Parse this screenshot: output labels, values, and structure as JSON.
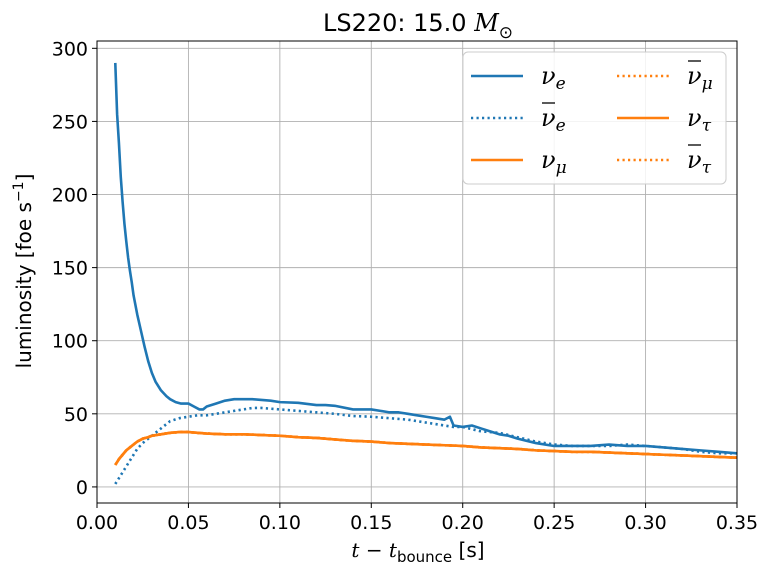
{
  "chart_data": {
    "type": "line",
    "title": "LS220: 15.0 M⊙",
    "title_prefix": "LS220: 15.0 ",
    "title_symbol": "M",
    "title_subscript": "⊙",
    "xlabel": "t − t",
    "xlabel_subscript": "bounce",
    "xlabel_suffix": " [s]",
    "ylabel": "luminosity [foe s",
    "ylabel_superscript": "−1",
    "ylabel_suffix": "]",
    "xlim": [
      0.0,
      0.35
    ],
    "ylim": [
      -11,
      305
    ],
    "xticks": [
      0.0,
      0.05,
      0.1,
      0.15,
      0.2,
      0.25,
      0.3,
      0.35
    ],
    "xtick_labels": [
      "0.00",
      "0.05",
      "0.10",
      "0.15",
      "0.20",
      "0.25",
      "0.30",
      "0.35"
    ],
    "yticks": [
      0,
      50,
      100,
      150,
      200,
      250,
      300
    ],
    "ytick_labels": [
      "0",
      "50",
      "100",
      "150",
      "200",
      "250",
      "300"
    ],
    "grid": true,
    "legend_position": "top-right",
    "legend_columns": 2,
    "colors": {
      "blue": "#1f77b4",
      "orange": "#ff7f0e"
    },
    "series": [
      {
        "name": "ν_e",
        "symbol": "ν",
        "sub": "e",
        "bar": false,
        "color": "#1f77b4",
        "style": "solid",
        "x": [
          0.01,
          0.011,
          0.012,
          0.013,
          0.014,
          0.015,
          0.016,
          0.017,
          0.018,
          0.019,
          0.02,
          0.022,
          0.024,
          0.026,
          0.028,
          0.03,
          0.032,
          0.035,
          0.038,
          0.04,
          0.043,
          0.046,
          0.05,
          0.053,
          0.056,
          0.058,
          0.06,
          0.065,
          0.07,
          0.075,
          0.08,
          0.085,
          0.09,
          0.095,
          0.1,
          0.11,
          0.12,
          0.125,
          0.13,
          0.14,
          0.15,
          0.155,
          0.16,
          0.165,
          0.17,
          0.175,
          0.18,
          0.185,
          0.19,
          0.193,
          0.195,
          0.2,
          0.205,
          0.21,
          0.215,
          0.22,
          0.225,
          0.23,
          0.24,
          0.25,
          0.26,
          0.27,
          0.28,
          0.29,
          0.3,
          0.31,
          0.32,
          0.33,
          0.34,
          0.35
        ],
        "y": [
          290,
          255,
          235,
          212,
          195,
          180,
          168,
          157,
          148,
          140,
          131,
          118,
          107,
          96,
          86,
          78,
          72,
          66,
          62,
          60,
          58,
          57,
          57,
          55,
          53,
          53,
          55,
          57,
          59,
          60,
          60,
          60,
          59.5,
          59,
          58,
          57.5,
          56,
          56,
          55.5,
          53,
          53,
          52,
          51,
          51,
          50,
          49,
          48,
          47,
          46,
          48,
          42,
          41,
          42,
          40,
          38,
          36,
          35,
          33,
          30,
          28,
          28,
          28,
          29,
          28,
          28,
          27,
          26,
          25,
          24,
          23
        ]
      },
      {
        "name": "ν̄_e",
        "symbol": "ν",
        "sub": "e",
        "bar": true,
        "color": "#1f77b4",
        "style": "dotted",
        "x": [
          0.01,
          0.012,
          0.014,
          0.016,
          0.018,
          0.02,
          0.022,
          0.025,
          0.028,
          0.03,
          0.033,
          0.036,
          0.04,
          0.045,
          0.05,
          0.055,
          0.06,
          0.065,
          0.07,
          0.075,
          0.08,
          0.085,
          0.09,
          0.095,
          0.1,
          0.11,
          0.12,
          0.13,
          0.14,
          0.15,
          0.16,
          0.17,
          0.18,
          0.19,
          0.195,
          0.2,
          0.21,
          0.22,
          0.23,
          0.24,
          0.25,
          0.26,
          0.27,
          0.28,
          0.29,
          0.3,
          0.31,
          0.32,
          0.33,
          0.34,
          0.35
        ],
        "y": [
          2,
          6,
          10,
          14,
          18,
          22,
          26,
          30,
          33,
          35,
          38,
          41,
          45,
          47,
          48,
          49,
          49,
          50,
          51,
          52,
          53,
          54,
          54,
          53.5,
          53,
          52,
          51,
          50,
          48.5,
          48,
          47,
          46,
          44,
          42,
          41,
          41,
          38,
          37,
          34,
          31,
          29,
          28,
          28,
          28,
          29,
          28,
          27,
          26,
          24,
          23,
          23
        ]
      },
      {
        "name": "ν_μ",
        "symbol": "ν",
        "sub": "μ",
        "bar": false,
        "color": "#ff7f0e",
        "style": "solid",
        "x": [
          0.01,
          0.012,
          0.014,
          0.016,
          0.018,
          0.02,
          0.022,
          0.025,
          0.028,
          0.03,
          0.035,
          0.04,
          0.045,
          0.05,
          0.055,
          0.06,
          0.07,
          0.08,
          0.09,
          0.1,
          0.11,
          0.12,
          0.13,
          0.14,
          0.15,
          0.16,
          0.17,
          0.18,
          0.19,
          0.2,
          0.21,
          0.22,
          0.23,
          0.24,
          0.25,
          0.26,
          0.27,
          0.28,
          0.29,
          0.3,
          0.31,
          0.32,
          0.33,
          0.34,
          0.35
        ],
        "y": [
          15,
          19,
          22,
          25,
          27,
          29,
          31,
          33,
          34,
          35,
          36,
          37,
          37.5,
          37.5,
          37,
          36.5,
          36,
          36,
          35.5,
          35,
          34,
          33.5,
          32.5,
          31.5,
          31,
          30,
          29.5,
          29,
          28.5,
          28,
          27,
          26.5,
          26,
          25,
          24.5,
          24,
          24,
          23.5,
          23,
          22.5,
          22,
          21.5,
          21,
          20.5,
          20
        ]
      },
      {
        "name": "ν̄_μ",
        "symbol": "ν",
        "sub": "μ",
        "bar": true,
        "color": "#ff7f0e",
        "style": "dotted",
        "x": [
          0.01,
          0.012,
          0.014,
          0.016,
          0.018,
          0.02,
          0.022,
          0.025,
          0.028,
          0.03,
          0.035,
          0.04,
          0.045,
          0.05,
          0.055,
          0.06,
          0.07,
          0.08,
          0.09,
          0.1,
          0.11,
          0.12,
          0.13,
          0.14,
          0.15,
          0.16,
          0.17,
          0.18,
          0.19,
          0.2,
          0.21,
          0.22,
          0.23,
          0.24,
          0.25,
          0.26,
          0.27,
          0.28,
          0.29,
          0.3,
          0.31,
          0.32,
          0.33,
          0.34,
          0.35
        ],
        "y": [
          15,
          19,
          22,
          25,
          27,
          29,
          31,
          33,
          34,
          35,
          36,
          37,
          37.5,
          37.5,
          37,
          36.5,
          36,
          36,
          35.5,
          35,
          34,
          33.5,
          32.5,
          31.5,
          31,
          30,
          29.5,
          29,
          28.5,
          28,
          27,
          26.5,
          26,
          25,
          24.5,
          24,
          24,
          23.5,
          23,
          22.5,
          22,
          21.5,
          21,
          20.5,
          20
        ]
      },
      {
        "name": "ν_τ",
        "symbol": "ν",
        "sub": "τ",
        "bar": false,
        "color": "#ff7f0e",
        "style": "solid",
        "x": [
          0.01,
          0.012,
          0.014,
          0.016,
          0.018,
          0.02,
          0.022,
          0.025,
          0.028,
          0.03,
          0.035,
          0.04,
          0.045,
          0.05,
          0.055,
          0.06,
          0.07,
          0.08,
          0.09,
          0.1,
          0.11,
          0.12,
          0.13,
          0.14,
          0.15,
          0.16,
          0.17,
          0.18,
          0.19,
          0.2,
          0.21,
          0.22,
          0.23,
          0.24,
          0.25,
          0.26,
          0.27,
          0.28,
          0.29,
          0.3,
          0.31,
          0.32,
          0.33,
          0.34,
          0.35
        ],
        "y": [
          15,
          19,
          22,
          25,
          27,
          29,
          31,
          33,
          34,
          35,
          36,
          37,
          37.5,
          37.5,
          37,
          36.5,
          36,
          36,
          35.5,
          35,
          34,
          33.5,
          32.5,
          31.5,
          31,
          30,
          29.5,
          29,
          28.5,
          28,
          27,
          26.5,
          26,
          25,
          24.5,
          24,
          24,
          23.5,
          23,
          22.5,
          22,
          21.5,
          21,
          20.5,
          20
        ]
      },
      {
        "name": "ν̄_τ",
        "symbol": "ν",
        "sub": "τ",
        "bar": true,
        "color": "#ff7f0e",
        "style": "dotted",
        "x": [
          0.01,
          0.012,
          0.014,
          0.016,
          0.018,
          0.02,
          0.022,
          0.025,
          0.028,
          0.03,
          0.035,
          0.04,
          0.045,
          0.05,
          0.055,
          0.06,
          0.07,
          0.08,
          0.09,
          0.1,
          0.11,
          0.12,
          0.13,
          0.14,
          0.15,
          0.16,
          0.17,
          0.18,
          0.19,
          0.2,
          0.21,
          0.22,
          0.23,
          0.24,
          0.25,
          0.26,
          0.27,
          0.28,
          0.29,
          0.3,
          0.31,
          0.32,
          0.33,
          0.34,
          0.35
        ],
        "y": [
          15,
          19,
          22,
          25,
          27,
          29,
          31,
          33,
          34,
          35,
          36,
          37,
          37.5,
          37.5,
          37,
          36.5,
          36,
          36,
          35.5,
          35,
          34,
          33.5,
          32.5,
          31.5,
          31,
          30,
          29.5,
          29,
          28.5,
          28,
          27,
          26.5,
          26,
          25,
          24.5,
          24,
          24,
          23.5,
          23,
          22.5,
          22,
          21.5,
          21,
          20.5,
          20
        ]
      }
    ]
  }
}
